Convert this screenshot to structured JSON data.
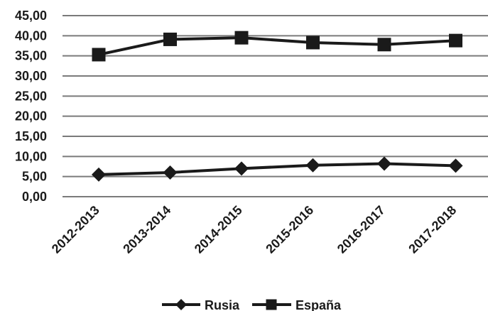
{
  "chart_data": {
    "type": "line",
    "categories": [
      "2012-2013",
      "2013-2014",
      "2014-2015",
      "2015-2016",
      "2016-2017",
      "2017-2018"
    ],
    "series": [
      {
        "name": "Rusia",
        "marker": "diamond",
        "values": [
          5.5,
          6.0,
          7.0,
          7.8,
          8.2,
          7.7
        ]
      },
      {
        "name": "España",
        "marker": "square",
        "values": [
          35.3,
          39.1,
          39.5,
          38.3,
          37.8,
          38.8
        ]
      }
    ],
    "ylim": [
      0,
      45
    ],
    "yticks": [
      "0,00",
      "5,00",
      "10,00",
      "15,00",
      "20,00",
      "25,00",
      "30,00",
      "35,00",
      "40,00",
      "45,00"
    ],
    "grid": true,
    "legend_position": "bottom",
    "title": "",
    "xlabel": "",
    "ylabel": "",
    "colors": {
      "line": "#1a1a1a",
      "grid": "#7a7a7a"
    }
  }
}
